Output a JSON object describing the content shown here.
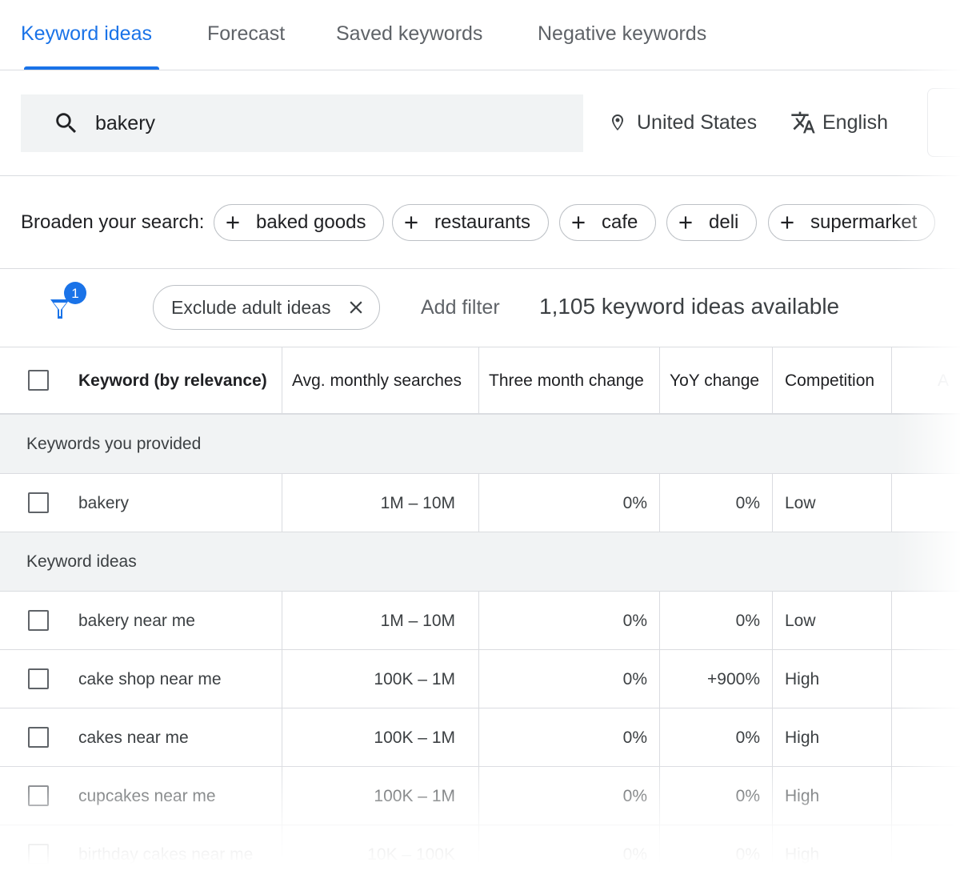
{
  "tabs": [
    {
      "label": "Keyword ideas",
      "active": true
    },
    {
      "label": "Forecast",
      "active": false
    },
    {
      "label": "Saved keywords",
      "active": false
    },
    {
      "label": "Negative keywords",
      "active": false
    }
  ],
  "search": {
    "value": "bakery",
    "location": "United States",
    "language": "English"
  },
  "broaden": {
    "label": "Broaden your search:",
    "chips": [
      "baked goods",
      "restaurants",
      "cafe",
      "deli",
      "supermarket"
    ]
  },
  "filters": {
    "count_badge": "1",
    "active_filter": "Exclude adult ideas",
    "add_filter": "Add filter",
    "available": "1,105 keyword ideas available"
  },
  "table": {
    "headers": {
      "keyword": "Keyword (by relevance)",
      "avg_monthly": "Avg. monthly searches",
      "three_month": "Three month change",
      "yoy": "YoY change",
      "competition": "Competition",
      "cut": "A"
    },
    "sections": [
      {
        "title": "Keywords you provided",
        "rows": [
          {
            "keyword": "bakery",
            "avg": "1M – 10M",
            "three_month": "0%",
            "yoy": "0%",
            "competition": "Low"
          }
        ]
      },
      {
        "title": "Keyword ideas",
        "rows": [
          {
            "keyword": "bakery near me",
            "avg": "1M – 10M",
            "three_month": "0%",
            "yoy": "0%",
            "competition": "Low"
          },
          {
            "keyword": "cake shop near me",
            "avg": "100K – 1M",
            "three_month": "0%",
            "yoy": "+900%",
            "competition": "High"
          },
          {
            "keyword": "cakes near me",
            "avg": "100K – 1M",
            "three_month": "0%",
            "yoy": "0%",
            "competition": "High"
          },
          {
            "keyword": "cupcakes near me",
            "avg": "100K – 1M",
            "three_month": "0%",
            "yoy": "0%",
            "competition": "High"
          },
          {
            "keyword": "birthday cakes near me",
            "avg": "10K – 100K",
            "three_month": "0%",
            "yoy": "0%",
            "competition": "High"
          }
        ]
      }
    ]
  },
  "colors": {
    "accent": "#1a73e8",
    "border": "#dadce0",
    "section_bg": "#f1f3f4"
  }
}
